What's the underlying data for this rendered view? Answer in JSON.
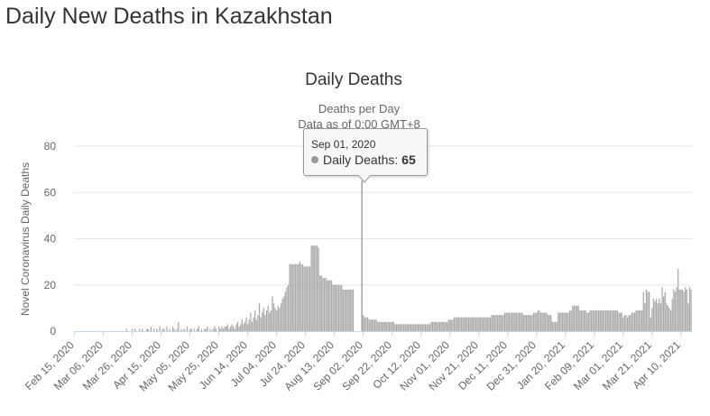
{
  "page": {
    "title": "Daily New Deaths in Kazakhstan"
  },
  "tooltip": {
    "date": "Sep 01, 2020",
    "series_label": "Daily Deaths:",
    "value": "65"
  },
  "chart_data": {
    "type": "bar",
    "title": "Daily Deaths",
    "subtitle_line1": "Deaths per Day",
    "subtitle_line2": "Data as of 0:00 GMT+8",
    "xlabel": "",
    "ylabel": "Novel Coronavirus Daily Deaths",
    "ylim": [
      0,
      80
    ],
    "yticks": [
      0,
      20,
      40,
      60,
      80
    ],
    "grid": true,
    "legend": "none",
    "bar_color": "#aaaaaa",
    "hover_color": "#999999",
    "x_start": "Feb 15, 2020",
    "x_end": "Apr 17, 2021",
    "xticks": [
      "Feb 15, 2020",
      "Mar 06, 2020",
      "Mar 26, 2020",
      "Apr 15, 2020",
      "May 05, 2020",
      "May 25, 2020",
      "Jun 14, 2020",
      "Jul 04, 2020",
      "Jul 24, 2020",
      "Aug 13, 2020",
      "Sep 02, 2020",
      "Sep 22, 2020",
      "Oct 12, 2020",
      "Nov 01, 2020",
      "Nov 21, 2020",
      "Dec 11, 2020",
      "Dec 31, 2020",
      "Jan 20, 2021",
      "Feb 09, 2021",
      "Mar 01, 2021",
      "Mar 21, 2021",
      "Apr 10, 2021"
    ],
    "highlight": {
      "date": "Sep 01, 2020",
      "value": 65
    },
    "segments": [
      {
        "from": "Feb 15, 2020",
        "to": "Mar 15, 2020",
        "values": [
          0
        ]
      },
      {
        "from": "Mar 16, 2020",
        "to": "Apr 05, 2020",
        "values": [
          0,
          0,
          0,
          0,
          0,
          0,
          1,
          0,
          0,
          0,
          1,
          0,
          1,
          0,
          0,
          1,
          0,
          1,
          0,
          0,
          1
        ]
      },
      {
        "from": "Apr 06, 2020",
        "to": "Apr 30, 2020",
        "values": [
          1,
          0,
          2,
          0,
          1,
          0,
          1,
          0,
          2,
          0,
          1,
          1,
          0,
          2,
          0,
          1,
          0,
          2,
          1,
          0,
          1,
          4,
          0,
          1,
          0
        ]
      },
      {
        "from": "May 01, 2020",
        "to": "May 31, 2020",
        "values": [
          1,
          0,
          2,
          0,
          1,
          1,
          0,
          1,
          0,
          1,
          2,
          0,
          1,
          0,
          1,
          1,
          2,
          0,
          1,
          0,
          1,
          2,
          1,
          0,
          2,
          1,
          2,
          1,
          2,
          2,
          3
        ]
      },
      {
        "from": "Jun 01, 2020",
        "to": "Jun 30, 2020",
        "values": [
          1,
          2,
          3,
          2,
          1,
          3,
          4,
          2,
          3,
          5,
          3,
          4,
          6,
          3,
          5,
          8,
          4,
          6,
          9,
          5,
          7,
          12,
          6,
          8,
          10,
          7,
          9,
          11,
          8,
          9
        ]
      },
      {
        "from": "Jul 01, 2020",
        "to": "Jul 31, 2020",
        "values": [
          15,
          12,
          10,
          9,
          11,
          10,
          12,
          14,
          15,
          17,
          19,
          20,
          29,
          29,
          29,
          29,
          29,
          29,
          29,
          30,
          29,
          29,
          28,
          28,
          28,
          28,
          28,
          37,
          37,
          37,
          37
        ]
      },
      {
        "from": "Aug 01, 2020",
        "to": "Aug 31, 2020",
        "values": [
          37,
          36,
          24,
          24,
          23,
          23,
          23,
          22,
          22,
          22,
          22,
          20,
          20,
          20,
          20,
          20,
          20,
          20,
          18,
          18,
          18,
          18,
          18,
          18,
          18,
          18,
          0,
          0,
          0,
          0,
          0
        ]
      },
      {
        "from": "Sep 01, 2020",
        "to": "Sep 30, 2020",
        "values": [
          65,
          7,
          6,
          6,
          6,
          5,
          5,
          5,
          5,
          5,
          5,
          4,
          4,
          4,
          4,
          4,
          4,
          4,
          4,
          4,
          4,
          4,
          4,
          3,
          3,
          3,
          3,
          3,
          3,
          3
        ]
      },
      {
        "from": "Oct 01, 2020",
        "to": "Oct 31, 2020",
        "values": [
          3,
          3,
          3,
          3,
          3,
          3,
          3,
          3,
          3,
          3,
          3,
          3,
          3,
          3,
          3,
          3,
          3,
          3,
          4,
          4,
          4,
          4,
          4,
          4,
          4,
          4,
          4,
          4,
          4,
          4,
          5
        ]
      },
      {
        "from": "Nov 01, 2020",
        "to": "Nov 30, 2020",
        "values": [
          5,
          5,
          5,
          6,
          6,
          6,
          6,
          6,
          6,
          6,
          6,
          6,
          6,
          6,
          6,
          6,
          6,
          6,
          6,
          6,
          6,
          6,
          6,
          6,
          6,
          6,
          6,
          6,
          6,
          7
        ]
      },
      {
        "from": "Dec 01, 2020",
        "to": "Dec 31, 2020",
        "values": [
          7,
          7,
          7,
          7,
          7,
          7,
          7,
          7,
          8,
          8,
          8,
          8,
          8,
          8,
          8,
          8,
          8,
          8,
          8,
          8,
          8,
          7,
          7,
          7,
          7,
          7,
          7,
          7,
          8,
          8,
          8
        ]
      },
      {
        "from": "Jan 01, 2021",
        "to": "Jan 31, 2021",
        "values": [
          9,
          9,
          8,
          8,
          8,
          8,
          8,
          7,
          7,
          7,
          4,
          4,
          4,
          4,
          8,
          8,
          8,
          8,
          8,
          8,
          8,
          8,
          9,
          9,
          11,
          11,
          11,
          11,
          11,
          9,
          9
        ]
      },
      {
        "from": "Feb 01, 2021",
        "to": "Feb 28, 2021",
        "values": [
          9,
          9,
          9,
          8,
          8,
          9,
          9,
          9,
          9,
          9,
          9,
          9,
          9,
          9,
          9,
          9,
          9,
          9,
          9,
          9,
          9,
          9,
          9,
          9,
          9,
          8,
          8,
          8
        ]
      },
      {
        "from": "Mar 01, 2021",
        "to": "Mar 31, 2021",
        "values": [
          6,
          7,
          7,
          6,
          7,
          7,
          8,
          8,
          8,
          9,
          9,
          9,
          9,
          9,
          17,
          12,
          18,
          17,
          17,
          6,
          10,
          14,
          13,
          14,
          12,
          14,
          12,
          19,
          15,
          17,
          12
        ]
      },
      {
        "from": "Apr 01, 2021",
        "to": "Apr 17, 2021",
        "values": [
          11,
          10,
          9,
          14,
          18,
          17,
          19,
          27,
          18,
          18,
          18,
          17,
          19,
          18,
          12,
          19,
          18
        ]
      }
    ]
  }
}
